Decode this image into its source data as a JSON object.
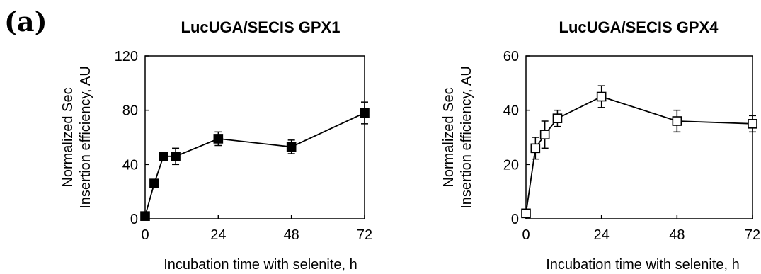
{
  "figure": {
    "panel_label": "(a)"
  },
  "chart_data": [
    {
      "type": "line",
      "title": "LucUGA/SECIS GPX1",
      "xlabel": "Incubation time with selenite, h",
      "ylabel_lines": [
        "Normalized Sec",
        "Insertion efficiency, AU"
      ],
      "xticks": [
        0,
        24,
        48,
        72
      ],
      "yticks": [
        0,
        40,
        80,
        120
      ],
      "xlim": [
        0,
        72
      ],
      "ylim": [
        0,
        120
      ],
      "grid": false,
      "marker": "filled-square",
      "series": [
        {
          "x": [
            0,
            3,
            6,
            10,
            24,
            48,
            72
          ],
          "y": [
            2,
            26,
            46,
            46,
            59,
            53,
            78
          ],
          "err": [
            1,
            3,
            3,
            6,
            5,
            5,
            8
          ]
        }
      ]
    },
    {
      "type": "line",
      "title": "LucUGA/SECIS GPX4",
      "xlabel": "Incubation time with selenite, h",
      "ylabel_lines": [
        "Normalized Sec",
        "Insertion efficiency, AU"
      ],
      "xticks": [
        0,
        24,
        48,
        72
      ],
      "yticks": [
        0,
        20,
        40,
        60
      ],
      "xlim": [
        0,
        72
      ],
      "ylim": [
        0,
        60
      ],
      "grid": false,
      "marker": "open-square",
      "series": [
        {
          "x": [
            0,
            3,
            6,
            10,
            24,
            48,
            72
          ],
          "y": [
            2,
            26,
            31,
            37,
            45,
            36,
            35
          ],
          "err": [
            1,
            4,
            5,
            3,
            4,
            4,
            3
          ]
        }
      ]
    }
  ]
}
